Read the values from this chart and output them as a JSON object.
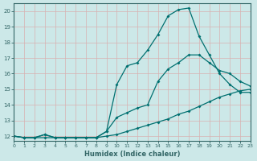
{
  "xlabel": "Humidex (Indice chaleur)",
  "bg_color": "#cce8e8",
  "grid_color": "#e0e0e0",
  "line_color": "#007070",
  "xlim": [
    0,
    23
  ],
  "ylim": [
    11.7,
    20.5
  ],
  "xticks": [
    0,
    1,
    2,
    3,
    4,
    5,
    6,
    7,
    8,
    9,
    10,
    11,
    12,
    13,
    14,
    15,
    16,
    17,
    18,
    19,
    20,
    21,
    22,
    23
  ],
  "yticks": [
    12,
    13,
    14,
    15,
    16,
    17,
    18,
    19,
    20
  ],
  "curve1_x": [
    0,
    1,
    2,
    3,
    4,
    5,
    6,
    7,
    8,
    9,
    10,
    11,
    12,
    13,
    14,
    15,
    16,
    17,
    18,
    19,
    20,
    21,
    22,
    23
  ],
  "curve1_y": [
    12,
    11.9,
    11.9,
    11.9,
    11.9,
    11.9,
    11.9,
    11.9,
    11.9,
    12.0,
    12.1,
    12.3,
    12.5,
    12.7,
    12.9,
    13.1,
    13.4,
    13.6,
    13.9,
    14.2,
    14.5,
    14.7,
    14.9,
    15.0
  ],
  "curve2_x": [
    0,
    1,
    2,
    3,
    4,
    5,
    6,
    7,
    8,
    9,
    10,
    11,
    12,
    13,
    14,
    15,
    16,
    17,
    18,
    19,
    20,
    21,
    22,
    23
  ],
  "curve2_y": [
    12,
    11.9,
    11.9,
    12.1,
    11.9,
    11.9,
    11.9,
    11.9,
    11.9,
    12.3,
    13.2,
    13.5,
    13.8,
    14.0,
    15.5,
    16.3,
    16.7,
    17.2,
    17.2,
    16.7,
    16.2,
    16.0,
    15.5,
    15.2
  ],
  "curve3_x": [
    0,
    1,
    2,
    3,
    4,
    5,
    6,
    7,
    8,
    9,
    10,
    11,
    12,
    13,
    14,
    15,
    16,
    17,
    18,
    19,
    20,
    21,
    22,
    23
  ],
  "curve3_y": [
    12,
    11.9,
    11.9,
    12.1,
    11.9,
    11.9,
    11.9,
    11.9,
    11.9,
    12.3,
    15.3,
    16.5,
    16.7,
    17.5,
    18.5,
    19.7,
    20.1,
    20.2,
    18.4,
    17.2,
    16.0,
    15.3,
    14.8,
    14.8
  ]
}
